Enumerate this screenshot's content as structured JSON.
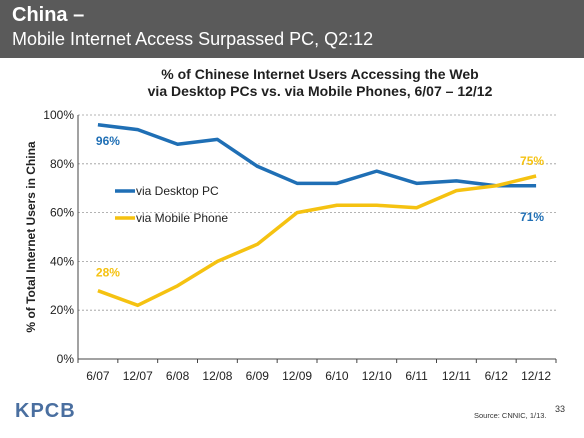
{
  "header": {
    "title": "China –",
    "subtitle": "Mobile Internet Access Surpassed PC, Q2:12"
  },
  "chart_data": {
    "type": "line",
    "title_line1": "% of Chinese Internet Users Accessing the Web",
    "title_line2": "via Desktop PCs vs. via Mobile Phones, 6/07 – 12/12",
    "ylabel": "% of Total Internet Users in China",
    "xlabel": "",
    "categories": [
      "6/07",
      "12/07",
      "6/08",
      "12/08",
      "6/09",
      "12/09",
      "6/10",
      "12/10",
      "6/11",
      "12/11",
      "6/12",
      "12/12"
    ],
    "yticks": [
      "0%",
      "20%",
      "40%",
      "60%",
      "80%",
      "100%"
    ],
    "ylim": [
      0,
      100
    ],
    "grid": "horizontal dashed",
    "legend_position": "inside-left",
    "series": [
      {
        "name": "via Desktop PC",
        "color": "#1f6fb5",
        "values": [
          96,
          94,
          88,
          90,
          79,
          72,
          72,
          77,
          72,
          73,
          71,
          71
        ],
        "labels": [
          {
            "index": 0,
            "text": "96%"
          },
          {
            "index": 11,
            "text": "71%"
          }
        ]
      },
      {
        "name": "via Mobile Phone",
        "color": "#f5c211",
        "values": [
          28,
          22,
          30,
          40,
          47,
          60,
          63,
          63,
          62,
          69,
          71,
          75
        ],
        "labels": [
          {
            "index": 0,
            "text": "28%"
          },
          {
            "index": 11,
            "text": "75%"
          }
        ]
      }
    ]
  },
  "footer": {
    "logo": "KPCB",
    "source": "Source: CNNIC, 1/13.",
    "page_number": "33"
  }
}
